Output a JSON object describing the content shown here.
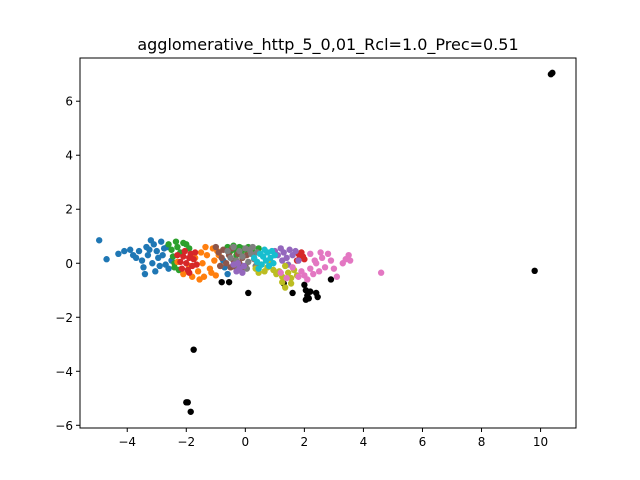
{
  "chart_data": {
    "type": "scatter",
    "title": "agglomerative_http_5_0,01_Rcl=1.0_Prec=0.51",
    "xlabel": "",
    "ylabel": "",
    "xlim": [
      -5.6,
      11.2
    ],
    "ylim": [
      -6.1,
      7.6
    ],
    "x_ticks": [
      -4,
      -2,
      0,
      2,
      4,
      6,
      8,
      10
    ],
    "y_ticks": [
      -6,
      -4,
      -2,
      0,
      2,
      4,
      6
    ],
    "x_tick_labels": [
      "−4",
      "−2",
      "0",
      "2",
      "4",
      "6",
      "8",
      "10"
    ],
    "y_tick_labels": [
      "−6",
      "−4",
      "−2",
      "0",
      "2",
      "4",
      "6"
    ],
    "grid": false,
    "legend": "none",
    "series": [
      {
        "color": "#000000",
        "points": [
          [
            10.4,
            7.05
          ],
          [
            10.35,
            7.0
          ],
          [
            9.8,
            -0.28
          ],
          [
            -1.75,
            -3.2
          ],
          [
            -2.0,
            -5.15
          ],
          [
            -1.95,
            -5.15
          ],
          [
            -1.85,
            -5.5
          ],
          [
            -0.8,
            -0.7
          ],
          [
            -0.55,
            -0.7
          ],
          [
            0.1,
            -1.1
          ],
          [
            1.3,
            -0.75
          ],
          [
            1.6,
            -1.1
          ],
          [
            2.0,
            -0.8
          ],
          [
            2.05,
            -1.0
          ],
          [
            2.1,
            -1.2
          ],
          [
            2.15,
            -1.3
          ],
          [
            2.2,
            -1.05
          ],
          [
            2.4,
            -1.1
          ],
          [
            2.45,
            -1.25
          ],
          [
            2.9,
            -0.6
          ],
          [
            2.05,
            -1.35
          ]
        ]
      },
      {
        "color": "#1f77b4",
        "points": [
          [
            -4.95,
            0.85
          ],
          [
            -4.7,
            0.15
          ],
          [
            -4.3,
            0.35
          ],
          [
            -4.1,
            0.45
          ],
          [
            -3.9,
            0.5
          ],
          [
            -3.8,
            0.3
          ],
          [
            -3.7,
            0.2
          ],
          [
            -3.6,
            0.45
          ],
          [
            -3.5,
            0.1
          ],
          [
            -3.45,
            -0.15
          ],
          [
            -3.4,
            -0.4
          ],
          [
            -3.35,
            0.6
          ],
          [
            -3.3,
            0.3
          ],
          [
            -3.2,
            0.85
          ],
          [
            -3.1,
            0.7
          ],
          [
            -3.0,
            0.45
          ],
          [
            -2.95,
            0.2
          ],
          [
            -2.9,
            -0.1
          ],
          [
            -2.85,
            0.8
          ],
          [
            -2.8,
            0.3
          ],
          [
            -2.7,
            -0.05
          ],
          [
            -2.65,
            0.6
          ],
          [
            -2.6,
            -0.2
          ],
          [
            -2.5,
            0.1
          ],
          [
            -3.05,
            -0.3
          ],
          [
            -3.15,
            0.0
          ],
          [
            -2.75,
            0.55
          ],
          [
            -3.25,
            0.5
          ],
          [
            -0.7,
            -0.15
          ],
          [
            -0.6,
            -0.4
          ],
          [
            -0.75,
            0.1
          ]
        ]
      },
      {
        "color": "#2ca02c",
        "points": [
          [
            -2.6,
            0.7
          ],
          [
            -2.5,
            0.5
          ],
          [
            -2.45,
            0.25
          ],
          [
            -2.4,
            0.0
          ],
          [
            -2.35,
            0.8
          ],
          [
            -2.3,
            0.6
          ],
          [
            -2.2,
            0.4
          ],
          [
            -2.1,
            0.75
          ],
          [
            -2.0,
            0.7
          ],
          [
            -1.9,
            0.55
          ],
          [
            -2.4,
            -0.15
          ],
          [
            -2.25,
            -0.25
          ],
          [
            -0.4,
            0.65
          ],
          [
            -0.35,
            0.5
          ],
          [
            -0.3,
            0.3
          ],
          [
            -0.25,
            0.55
          ],
          [
            -0.2,
            0.6
          ],
          [
            -0.15,
            0.35
          ],
          [
            -0.1,
            0.55
          ],
          [
            0.0,
            0.5
          ],
          [
            0.1,
            0.6
          ],
          [
            0.3,
            0.4
          ],
          [
            0.45,
            0.55
          ],
          [
            -0.6,
            0.6
          ],
          [
            -0.5,
            0.45
          ]
        ]
      },
      {
        "color": "#ff7f0e",
        "points": [
          [
            -2.3,
            0.05
          ],
          [
            -2.1,
            -0.4
          ],
          [
            -1.9,
            -0.1
          ],
          [
            -1.8,
            -0.5
          ],
          [
            -1.7,
            0.2
          ],
          [
            -1.6,
            -0.3
          ],
          [
            -1.5,
            0.4
          ],
          [
            -1.45,
            0.0
          ],
          [
            -1.4,
            -0.5
          ],
          [
            -1.3,
            0.3
          ],
          [
            -1.2,
            -0.2
          ],
          [
            -1.1,
            0.55
          ],
          [
            -1.05,
            0.1
          ],
          [
            -1.0,
            -0.45
          ],
          [
            -0.9,
            0.3
          ],
          [
            -0.85,
            -0.1
          ],
          [
            -1.55,
            -0.6
          ],
          [
            -1.35,
            0.6
          ],
          [
            -1.15,
            -0.35
          ],
          [
            -0.95,
            0.45
          ]
        ]
      },
      {
        "color": "#d62728",
        "points": [
          [
            -2.3,
            0.3
          ],
          [
            -2.2,
            0.05
          ],
          [
            -2.15,
            -0.2
          ],
          [
            -2.1,
            0.25
          ],
          [
            -2.0,
            0.0
          ],
          [
            -1.95,
            -0.25
          ],
          [
            -1.9,
            0.2
          ],
          [
            -1.85,
            0.35
          ],
          [
            -1.8,
            -0.1
          ],
          [
            -1.75,
            0.15
          ],
          [
            -1.7,
            0.4
          ],
          [
            -1.65,
            -0.05
          ],
          [
            -2.05,
            0.45
          ],
          [
            -1.9,
            -0.35
          ],
          [
            1.8,
            0.35
          ],
          [
            1.85,
            0.2
          ],
          [
            1.9,
            0.4
          ],
          [
            1.95,
            0.25
          ],
          [
            2.0,
            0.15
          ],
          [
            1.75,
            0.1
          ]
        ]
      },
      {
        "color": "#8c564b",
        "points": [
          [
            -1.0,
            0.6
          ],
          [
            -0.9,
            0.4
          ],
          [
            -0.8,
            0.2
          ],
          [
            -0.75,
            0.5
          ],
          [
            -0.65,
            0.0
          ],
          [
            -0.55,
            0.3
          ],
          [
            -0.5,
            -0.15
          ],
          [
            -0.45,
            0.55
          ],
          [
            -0.4,
            0.1
          ],
          [
            -0.3,
            -0.2
          ],
          [
            -0.25,
            0.35
          ],
          [
            -0.2,
            0.0
          ],
          [
            -0.15,
            -0.25
          ],
          [
            -0.1,
            0.2
          ],
          [
            0.0,
            -0.1
          ],
          [
            0.05,
            0.3
          ],
          [
            -0.85,
            -0.1
          ],
          [
            -0.6,
            0.45
          ]
        ]
      },
      {
        "color": "#7f7f7f",
        "points": [
          [
            -0.6,
            0.45
          ],
          [
            -0.5,
            0.2
          ],
          [
            -0.4,
            0.6
          ],
          [
            -0.3,
            0.1
          ],
          [
            -0.2,
            0.45
          ],
          [
            -0.1,
            0.25
          ],
          [
            0.0,
            0.55
          ],
          [
            0.1,
            0.05
          ],
          [
            0.2,
            0.35
          ],
          [
            0.25,
            0.6
          ],
          [
            0.3,
            0.15
          ],
          [
            0.4,
            0.4
          ],
          [
            0.05,
            -0.2
          ],
          [
            -0.35,
            -0.05
          ],
          [
            0.15,
            0.5
          ],
          [
            0.35,
            -0.1
          ]
        ]
      },
      {
        "color": "#9467bd",
        "points": [
          [
            -0.4,
            -0.05
          ],
          [
            -0.3,
            -0.3
          ],
          [
            -0.25,
            0.0
          ],
          [
            -0.2,
            -0.2
          ],
          [
            -0.1,
            -0.35
          ],
          [
            -0.05,
            -0.1
          ],
          [
            1.0,
            0.45
          ],
          [
            1.1,
            0.3
          ],
          [
            1.2,
            0.55
          ],
          [
            1.3,
            0.4
          ],
          [
            1.4,
            0.2
          ],
          [
            1.5,
            0.5
          ],
          [
            1.6,
            0.3
          ],
          [
            1.7,
            0.45
          ],
          [
            1.8,
            0.1
          ],
          [
            1.25,
            0.1
          ],
          [
            1.45,
            -0.05
          ]
        ]
      },
      {
        "color": "#bcbd22",
        "points": [
          [
            0.35,
            -0.2
          ],
          [
            0.45,
            -0.35
          ],
          [
            0.55,
            -0.05
          ],
          [
            0.65,
            -0.3
          ],
          [
            0.75,
            -0.15
          ],
          [
            0.85,
            0.05
          ],
          [
            0.95,
            -0.25
          ],
          [
            1.05,
            -0.4
          ],
          [
            1.15,
            -0.3
          ],
          [
            1.25,
            -0.5
          ],
          [
            1.35,
            -0.1
          ],
          [
            1.45,
            -0.35
          ],
          [
            1.55,
            -0.55
          ],
          [
            1.65,
            -0.25
          ],
          [
            1.75,
            -0.45
          ],
          [
            1.35,
            -0.9
          ],
          [
            1.55,
            -0.75
          ],
          [
            1.25,
            -0.7
          ]
        ]
      },
      {
        "color": "#17becf",
        "points": [
          [
            0.3,
            0.2
          ],
          [
            0.4,
            0.05
          ],
          [
            0.5,
            0.35
          ],
          [
            0.55,
            -0.05
          ],
          [
            0.6,
            0.25
          ],
          [
            0.7,
            0.1
          ],
          [
            0.75,
            0.4
          ],
          [
            0.8,
            -0.1
          ],
          [
            0.85,
            0.2
          ],
          [
            0.9,
            0.45
          ],
          [
            0.95,
            0.0
          ],
          [
            1.0,
            0.3
          ],
          [
            0.45,
            -0.2
          ],
          [
            0.65,
            0.5
          ]
        ]
      },
      {
        "color": "#e377c2",
        "points": [
          [
            1.2,
            -0.35
          ],
          [
            1.4,
            -0.55
          ],
          [
            1.6,
            -0.15
          ],
          [
            1.8,
            -0.5
          ],
          [
            1.9,
            -0.3
          ],
          [
            2.0,
            -0.45
          ],
          [
            2.1,
            -0.6
          ],
          [
            2.2,
            -0.2
          ],
          [
            2.3,
            -0.4
          ],
          [
            2.4,
            0.0
          ],
          [
            2.5,
            -0.3
          ],
          [
            2.6,
            0.2
          ],
          [
            2.7,
            -0.15
          ],
          [
            2.8,
            0.35
          ],
          [
            2.9,
            0.1
          ],
          [
            3.0,
            -0.2
          ],
          [
            3.1,
            -0.5
          ],
          [
            3.3,
            0.0
          ],
          [
            3.4,
            0.15
          ],
          [
            3.5,
            0.3
          ],
          [
            3.55,
            0.1
          ],
          [
            4.6,
            -0.35
          ],
          [
            2.2,
            0.35
          ],
          [
            2.35,
            0.1
          ],
          [
            2.55,
            0.4
          ]
        ]
      }
    ]
  }
}
